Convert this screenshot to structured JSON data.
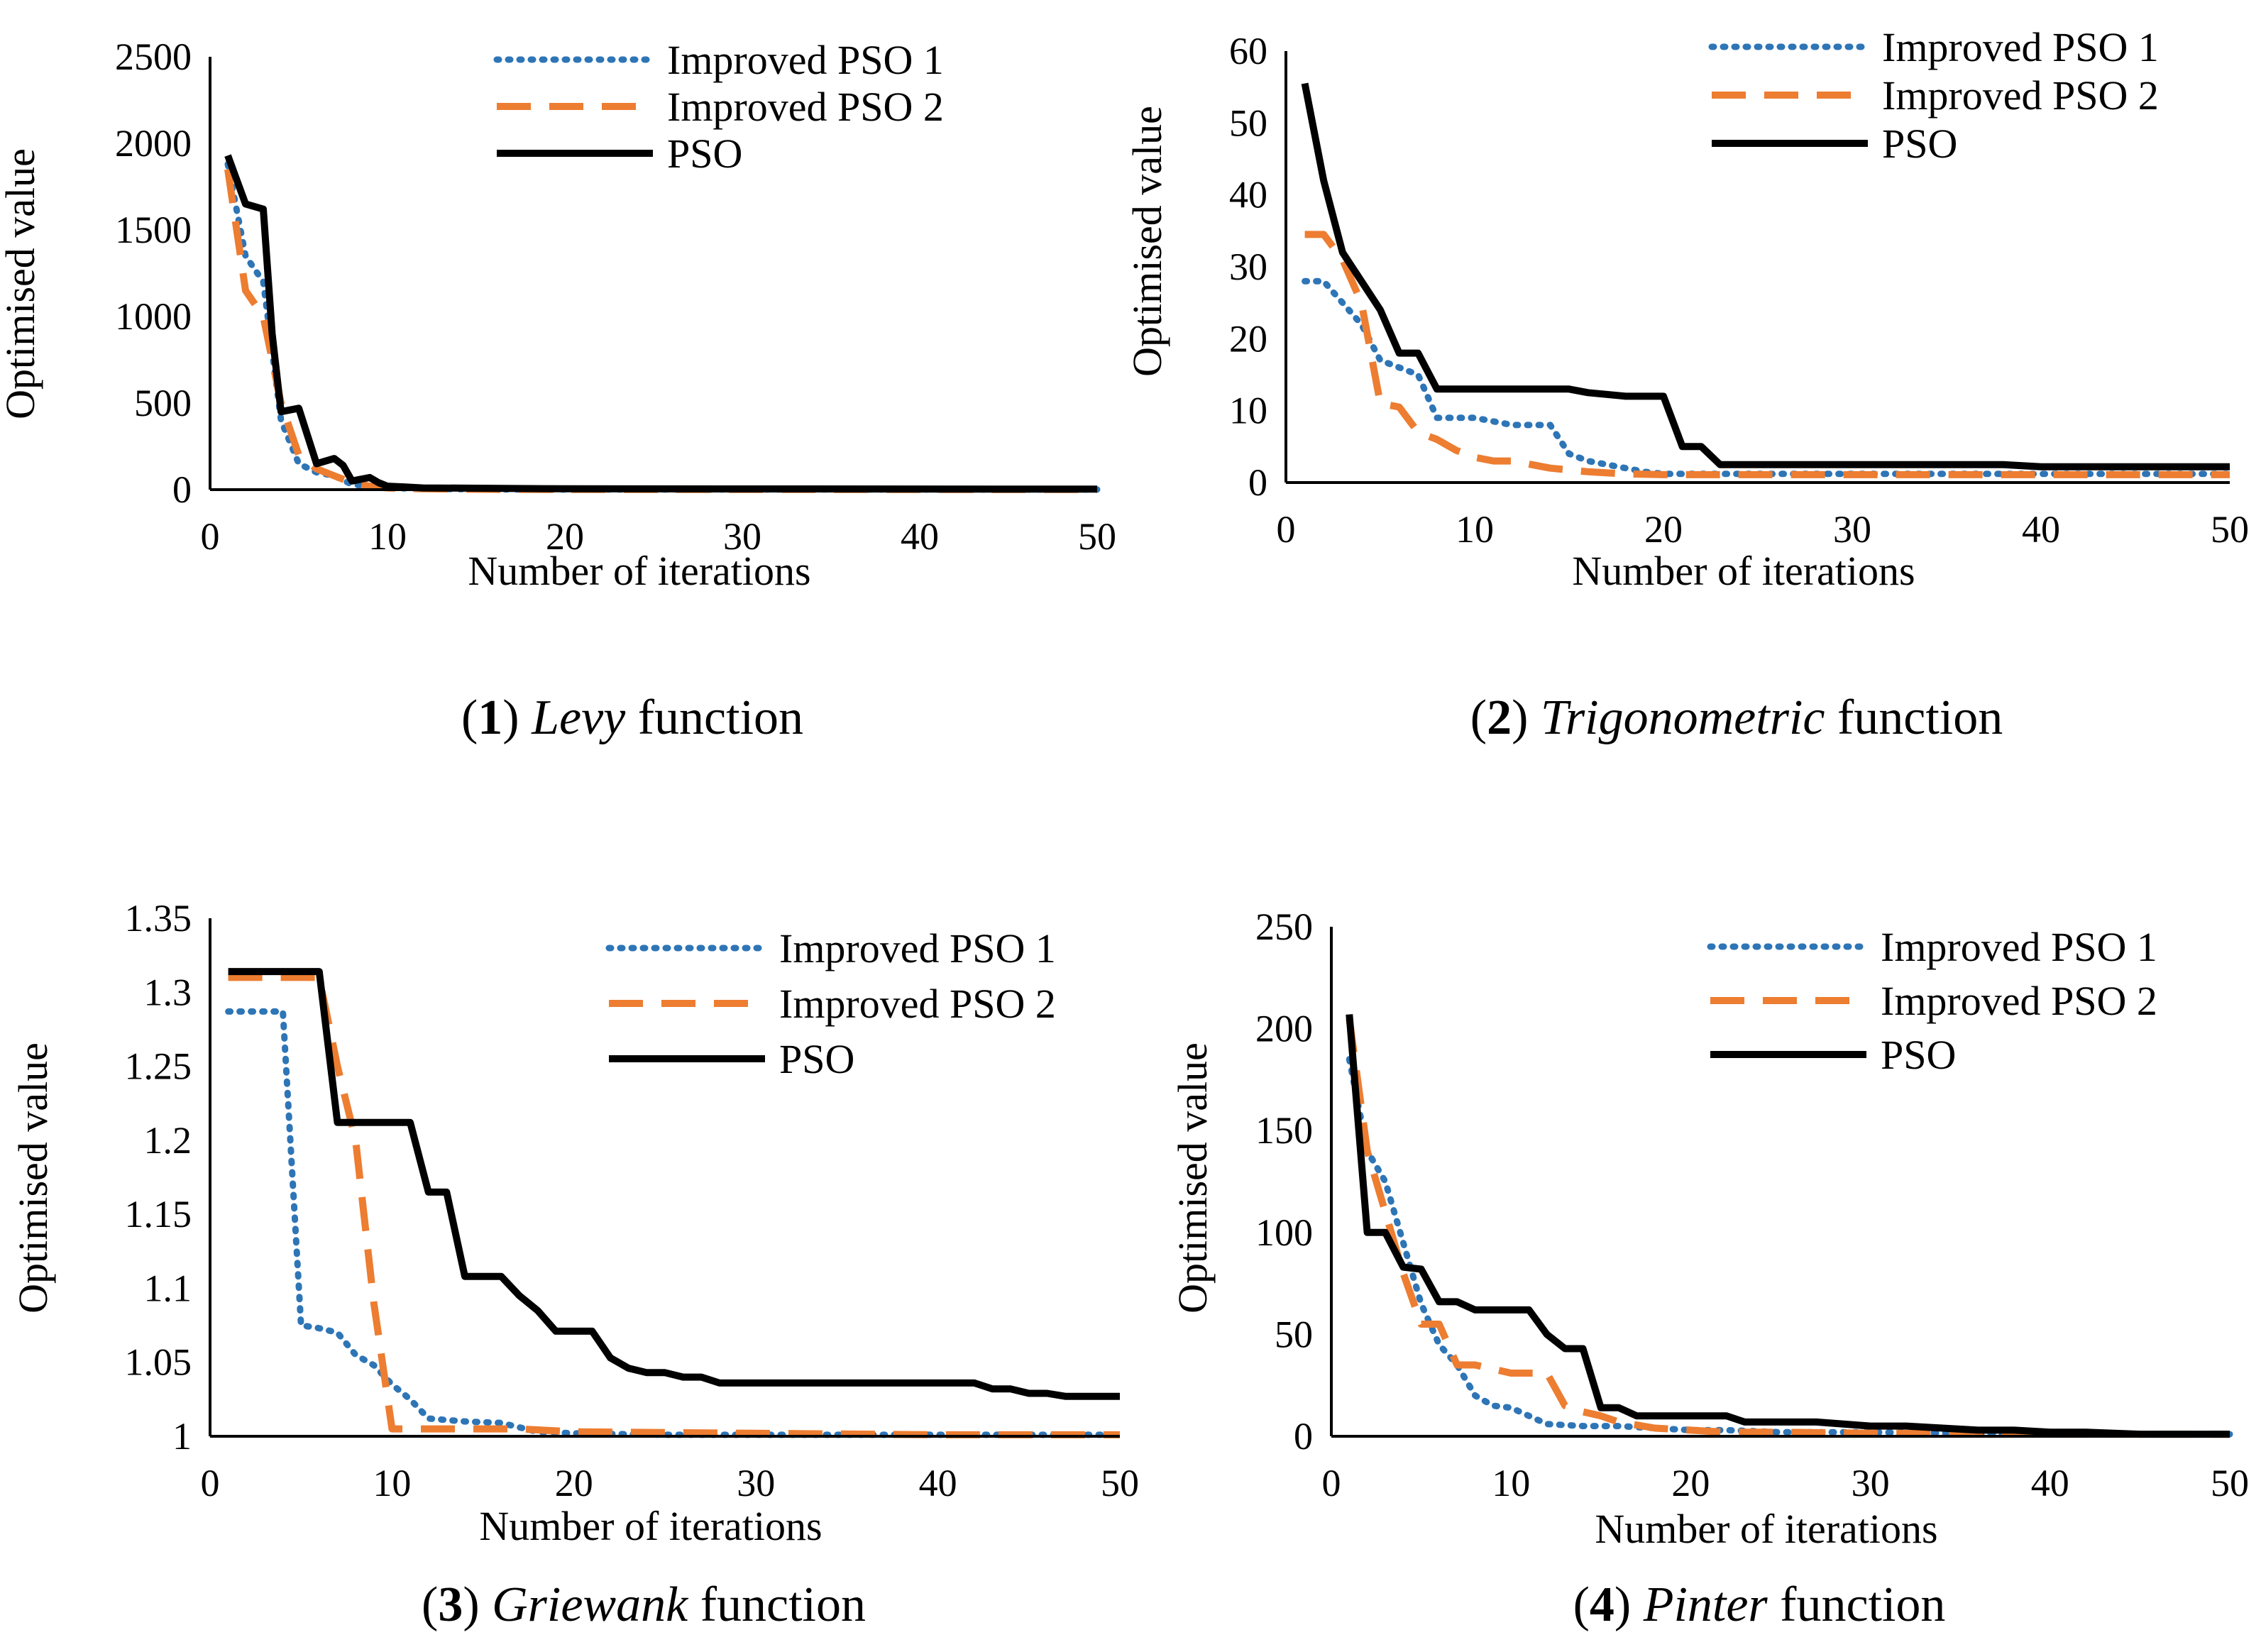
{
  "colors": {
    "series1": "#2E75B6",
    "series2": "#ED7D31",
    "series3": "#000000"
  },
  "chart_data": [
    {
      "type": "line",
      "caption": {
        "num": "1",
        "open": "(",
        "close": ")",
        "name": "Levy",
        "suffix": "function"
      },
      "xlabel": "Number of iterations",
      "ylabel": "Optimised value",
      "xlim": [
        0,
        50
      ],
      "ylim": [
        0,
        2500
      ],
      "xticks": [
        0,
        10,
        20,
        30,
        40,
        50
      ],
      "xtick_labels": [
        "0",
        "10",
        "20",
        "30",
        "40",
        "50"
      ],
      "yticks": [
        0,
        500,
        1000,
        1500,
        2000,
        2500
      ],
      "ytick_labels": [
        "0",
        "500",
        "1000",
        "1500",
        "2000",
        "2500"
      ],
      "grid": false,
      "legend": "top-right",
      "series": [
        {
          "name": "Improved PSO 1",
          "style": "dotted",
          "x": [
            1,
            2,
            3,
            4,
            5,
            6,
            7,
            8,
            9,
            10,
            12,
            15,
            20,
            50
          ],
          "y": [
            1880,
            1350,
            1200,
            400,
            150,
            100,
            80,
            30,
            20,
            10,
            5,
            2,
            1,
            1
          ]
        },
        {
          "name": "Improved PSO 2",
          "style": "dashed",
          "x": [
            1,
            2,
            3,
            4,
            5,
            6,
            7,
            8,
            9,
            10,
            12,
            15,
            20,
            50
          ],
          "y": [
            1850,
            1150,
            1000,
            500,
            200,
            120,
            80,
            40,
            20,
            10,
            5,
            2,
            1,
            1
          ]
        },
        {
          "name": "PSO",
          "style": "solid",
          "x": [
            1,
            2,
            3,
            3.5,
            4,
            5,
            6,
            7,
            7.5,
            8,
            9,
            9.5,
            10,
            11,
            12,
            15,
            20,
            50
          ],
          "y": [
            1930,
            1650,
            1620,
            900,
            450,
            470,
            150,
            180,
            140,
            50,
            70,
            40,
            20,
            15,
            10,
            8,
            5,
            3
          ]
        }
      ]
    },
    {
      "type": "line",
      "caption": {
        "num": "2",
        "open": "(",
        "close": ")",
        "name": "Trigonometric",
        "suffix": "function"
      },
      "xlabel": "Number of iterations",
      "ylabel": "Optimised value",
      "xlim": [
        0,
        50
      ],
      "ylim": [
        0,
        60
      ],
      "xticks": [
        0,
        10,
        20,
        30,
        40,
        50
      ],
      "xtick_labels": [
        "0",
        "10",
        "20",
        "30",
        "40",
        "50"
      ],
      "yticks": [
        0,
        10,
        20,
        30,
        40,
        50,
        60
      ],
      "ytick_labels": [
        "0",
        "10",
        "20",
        "30",
        "40",
        "50",
        "60"
      ],
      "grid": false,
      "legend": "top-right",
      "series": [
        {
          "name": "Improved PSO 1",
          "style": "dotted",
          "x": [
            1,
            2,
            3,
            4,
            5,
            6,
            7,
            8,
            10,
            12,
            14,
            15,
            16,
            18,
            19,
            20,
            22,
            30,
            40,
            50
          ],
          "y": [
            28,
            28,
            25,
            22,
            17,
            16,
            15,
            9,
            9,
            8,
            8,
            4,
            3,
            2,
            1.5,
            1.2,
            1.2,
            1.2,
            1.2,
            1.2
          ]
        },
        {
          "name": "Improved PSO 2",
          "style": "dashed",
          "x": [
            1,
            2,
            3,
            4,
            5,
            6,
            7,
            8,
            9,
            10,
            11,
            12,
            14,
            16,
            18,
            20,
            30,
            40,
            50
          ],
          "y": [
            34.5,
            34.5,
            31,
            25,
            11,
            10.5,
            7,
            6,
            4.5,
            3.5,
            3,
            3,
            2,
            1.5,
            1.2,
            1.1,
            1.1,
            1.1,
            1.1
          ]
        },
        {
          "name": "PSO",
          "style": "solid",
          "x": [
            1,
            2,
            3,
            4,
            5,
            6,
            7,
            8,
            10,
            12,
            14,
            15,
            16,
            18,
            20,
            21,
            22,
            23,
            30,
            38,
            40,
            50
          ],
          "y": [
            55.5,
            42,
            32,
            28,
            24,
            18,
            18,
            13,
            13,
            13,
            13,
            13,
            12.5,
            12,
            12,
            5,
            5,
            2.5,
            2.5,
            2.5,
            2.2,
            2.2
          ]
        }
      ]
    },
    {
      "type": "line",
      "caption": {
        "num": "3",
        "open": "(",
        "close": ")",
        "name": "Griewank",
        "suffix": "function"
      },
      "xlabel": "Number of iterations",
      "ylabel": "Optimised value",
      "xlim": [
        0,
        50
      ],
      "ylim": [
        1,
        1.35
      ],
      "xticks": [
        0,
        10,
        20,
        30,
        40,
        50
      ],
      "xtick_labels": [
        "0",
        "10",
        "20",
        "30",
        "40",
        "50"
      ],
      "yticks": [
        1,
        1.05,
        1.1,
        1.15,
        1.2,
        1.25,
        1.3,
        1.35
      ],
      "ytick_labels": [
        "1",
        "1.05",
        "1.1",
        "1.15",
        "1.2",
        "1.25",
        "1.3",
        "1.35"
      ],
      "grid": false,
      "legend": "top-right",
      "series": [
        {
          "name": "Improved PSO 1",
          "style": "dotted",
          "x": [
            1,
            2,
            3,
            4,
            5,
            6,
            7,
            8,
            9,
            10,
            11,
            12,
            14,
            16,
            18,
            20,
            25,
            30,
            40,
            50
          ],
          "y": [
            1.287,
            1.287,
            1.287,
            1.287,
            1.075,
            1.073,
            1.07,
            1.055,
            1.048,
            1.035,
            1.025,
            1.012,
            1.01,
            1.009,
            1.003,
            1.002,
            1.001,
            1.001,
            1.001,
            1.001
          ]
        },
        {
          "name": "Improved PSO 2",
          "style": "dashed",
          "x": [
            1,
            2,
            3,
            4,
            5,
            6,
            7,
            8,
            9,
            10,
            11,
            15,
            17,
            20,
            30,
            40,
            50
          ],
          "y": [
            1.31,
            1.31,
            1.31,
            1.31,
            1.31,
            1.31,
            1.25,
            1.2,
            1.09,
            1.005,
            1.005,
            1.005,
            1.005,
            1.003,
            1.002,
            1.001,
            1.001
          ]
        },
        {
          "name": "PSO",
          "style": "solid",
          "x": [
            1,
            2,
            3,
            4,
            5,
            6,
            7,
            8,
            9,
            10,
            11,
            12,
            13,
            14,
            15,
            16,
            17,
            18,
            19,
            20,
            21,
            22,
            23,
            24,
            25,
            26,
            27,
            28,
            30,
            35,
            40,
            42,
            43,
            44,
            45,
            46,
            47,
            48,
            49,
            50
          ],
          "y": [
            1.314,
            1.314,
            1.314,
            1.314,
            1.314,
            1.314,
            1.212,
            1.212,
            1.212,
            1.212,
            1.212,
            1.165,
            1.165,
            1.108,
            1.108,
            1.108,
            1.095,
            1.085,
            1.071,
            1.071,
            1.071,
            1.053,
            1.046,
            1.043,
            1.043,
            1.04,
            1.04,
            1.036,
            1.036,
            1.036,
            1.036,
            1.036,
            1.032,
            1.032,
            1.029,
            1.029,
            1.027,
            1.027,
            1.027,
            1.027
          ]
        }
      ]
    },
    {
      "type": "line",
      "caption": {
        "num": "4",
        "open": "(",
        "close": ")",
        "name": "Pinter",
        "suffix": "function"
      },
      "xlabel": "Number of iterations",
      "ylabel": "Optimised value",
      "xlim": [
        0,
        50
      ],
      "ylim": [
        0,
        250
      ],
      "xticks": [
        0,
        10,
        20,
        30,
        40,
        50
      ],
      "xtick_labels": [
        "0",
        "10",
        "20",
        "30",
        "40",
        "50"
      ],
      "yticks": [
        0,
        50,
        100,
        150,
        200,
        250
      ],
      "ytick_labels": [
        "0",
        "50",
        "100",
        "150",
        "200",
        "250"
      ],
      "grid": false,
      "legend": "top-right",
      "series": [
        {
          "name": "Improved PSO 1",
          "style": "dotted",
          "x": [
            1,
            2,
            3,
            4,
            5,
            6,
            7,
            8,
            9,
            10,
            11,
            12,
            14,
            16,
            18,
            20,
            22,
            25,
            30,
            35,
            40,
            50
          ],
          "y": [
            185,
            140,
            125,
            95,
            65,
            45,
            35,
            20,
            15,
            14,
            10,
            6,
            5,
            5,
            4,
            3,
            3,
            2,
            2,
            1.5,
            1,
            1
          ]
        },
        {
          "name": "Improved PSO 2",
          "style": "dashed",
          "x": [
            1,
            2,
            3,
            4,
            5,
            6,
            7,
            8,
            9,
            10,
            11,
            12,
            13,
            14,
            15,
            16,
            18,
            20,
            22,
            25,
            30,
            40,
            50
          ],
          "y": [
            205,
            140,
            110,
            80,
            55,
            55,
            35,
            35,
            33,
            31,
            31,
            31,
            15,
            12,
            10,
            7,
            4,
            3,
            2,
            2,
            1.5,
            1,
            1
          ]
        },
        {
          "name": "PSO",
          "style": "solid",
          "x": [
            1,
            2,
            3,
            4,
            5,
            6,
            7,
            8,
            9,
            10,
            11,
            12,
            13,
            14,
            15,
            16,
            17,
            20,
            22,
            23,
            25,
            27,
            30,
            32,
            34,
            36,
            38,
            40,
            42,
            45,
            50
          ],
          "y": [
            207,
            100,
            100,
            83,
            82,
            66,
            66,
            62,
            62,
            62,
            62,
            50,
            43,
            43,
            14,
            14,
            10,
            10,
            10,
            7,
            7,
            7,
            5,
            5,
            4,
            3,
            3,
            2,
            2,
            1,
            1
          ]
        }
      ]
    }
  ]
}
